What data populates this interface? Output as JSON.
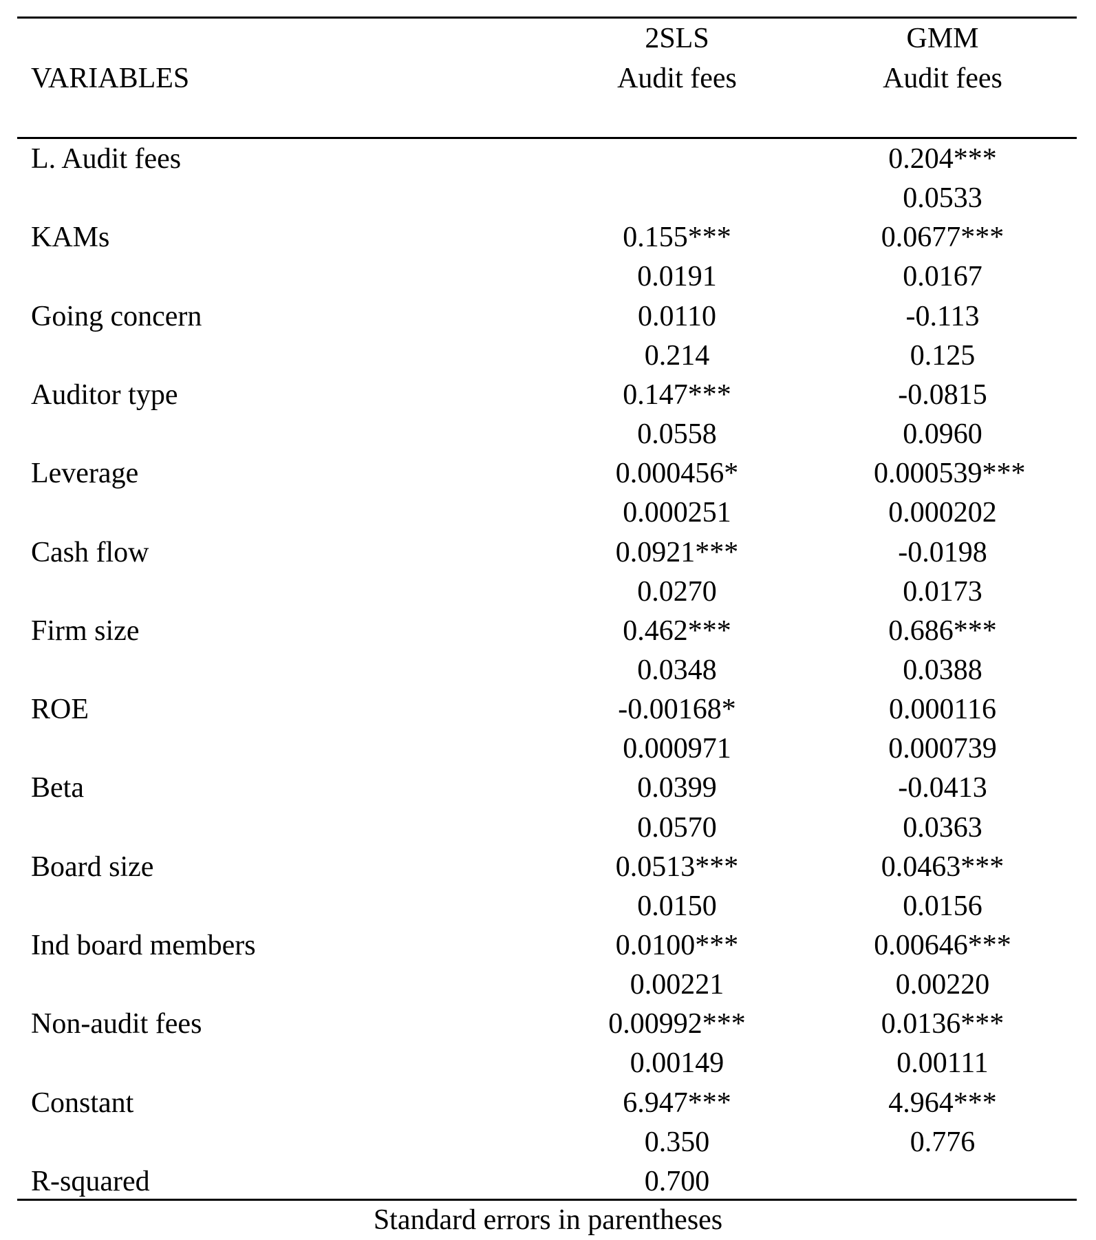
{
  "header": {
    "variables_label": "VARIABLES",
    "columns": [
      {
        "model": "2SLS",
        "dependent": "Audit fees"
      },
      {
        "model": "GMM",
        "dependent": "Audit fees"
      }
    ]
  },
  "rows": [
    {
      "label": "L. Audit fees",
      "c1": [
        "",
        ""
      ],
      "c2": [
        "0.204***",
        "0.0533"
      ]
    },
    {
      "label": "KAMs",
      "c1": [
        "0.155***",
        "0.0191"
      ],
      "c2": [
        "0.0677***",
        "0.0167"
      ]
    },
    {
      "label": "Going concern",
      "c1": [
        "0.0110",
        "0.214"
      ],
      "c2": [
        "-0.113",
        "0.125"
      ]
    },
    {
      "label": "Auditor type",
      "c1": [
        "0.147***",
        "0.0558"
      ],
      "c2": [
        "-0.0815",
        "0.0960"
      ]
    },
    {
      "label": "Leverage",
      "c1": [
        "0.000456*",
        "0.000251"
      ],
      "c2": [
        "0.000539***",
        "0.000202"
      ]
    },
    {
      "label": "Cash flow",
      "c1": [
        "0.0921***",
        "0.0270"
      ],
      "c2": [
        "-0.0198",
        "0.0173"
      ]
    },
    {
      "label": "Firm size",
      "c1": [
        "0.462***",
        "0.0348"
      ],
      "c2": [
        "0.686***",
        "0.0388"
      ]
    },
    {
      "label": "ROE",
      "c1": [
        "-0.00168*",
        "0.000971"
      ],
      "c2": [
        "0.000116",
        "0.000739"
      ]
    },
    {
      "label": "Beta",
      "c1": [
        "0.0399",
        "0.0570"
      ],
      "c2": [
        "-0.0413",
        "0.0363"
      ]
    },
    {
      "label": "Board size",
      "c1": [
        "0.0513***",
        "0.0150"
      ],
      "c2": [
        "0.0463***",
        "0.0156"
      ]
    },
    {
      "label": "Ind board members",
      "c1": [
        "0.0100***",
        "0.00221"
      ],
      "c2": [
        "0.00646***",
        "0.00220"
      ]
    },
    {
      "label": "Non-audit fees",
      "c1": [
        "0.00992***",
        "0.00149"
      ],
      "c2": [
        "0.0136***",
        "0.00111"
      ]
    },
    {
      "label": "Constant",
      "c1": [
        "6.947***",
        "0.350"
      ],
      "c2": [
        "4.964***",
        "0.776"
      ]
    },
    {
      "label": "R-squared",
      "c1": [
        "0.700"
      ],
      "c2": [
        ""
      ]
    }
  ],
  "footer": "Standard errors in parentheses"
}
